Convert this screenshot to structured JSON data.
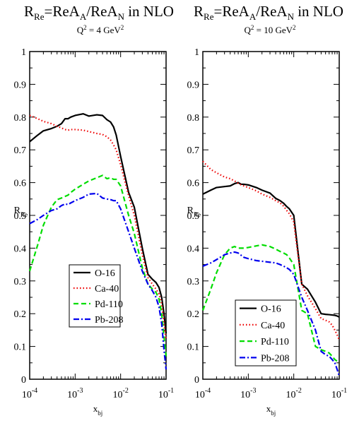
{
  "chart_data": [
    {
      "type": "line",
      "title": {
        "base": "R",
        "base_sub": "Re",
        "mid": "=ReA",
        "mid_sub": "A",
        "div": "/ReA",
        "div_sub": "N",
        "suffix": " in NLO"
      },
      "subtitle": {
        "base": "Q",
        "sup": "2",
        "rest": " = 4 GeV",
        "rest_sup": "2"
      },
      "ylabel": {
        "base": "R",
        "sub": "Re"
      },
      "xlabel": {
        "base": "x",
        "sub": "bj"
      },
      "xscale": "log",
      "xlim": [
        0.0001,
        0.1
      ],
      "ylim": [
        0,
        1
      ],
      "yticks": [
        "0",
        "0.1",
        "0.2",
        "0.3",
        "0.4",
        "0.5",
        "0.6",
        "0.7",
        "0.8",
        "0.9",
        "1"
      ],
      "xticks": [
        {
          "base": "10",
          "exp": "-4"
        },
        {
          "base": "10",
          "exp": "-3"
        },
        {
          "base": "10",
          "exp": "-2"
        },
        {
          "base": "10",
          "exp": "-1"
        }
      ],
      "legend_position": "bottom-left",
      "series": [
        {
          "name": "O-16",
          "color": "#000000",
          "dash": "solid",
          "x": [
            0.0001,
            0.00015,
            0.0002,
            0.0003,
            0.0004,
            0.0005,
            0.0006,
            0.0007,
            0.0008,
            0.001,
            0.0015,
            0.002,
            0.003,
            0.004,
            0.005,
            0.006,
            0.007,
            0.008,
            0.01,
            0.015,
            0.02,
            0.03,
            0.04,
            0.05,
            0.06,
            0.07,
            0.08,
            0.09,
            0.1
          ],
          "y": [
            0.725,
            0.745,
            0.758,
            0.765,
            0.772,
            0.78,
            0.795,
            0.795,
            0.8,
            0.805,
            0.81,
            0.803,
            0.807,
            0.805,
            0.792,
            0.785,
            0.77,
            0.745,
            0.68,
            0.57,
            0.525,
            0.4,
            0.32,
            0.305,
            0.295,
            0.28,
            0.25,
            0.2,
            0.14
          ]
        },
        {
          "name": "Ca-40",
          "color": "#ee0000",
          "dash": "dotted",
          "x": [
            0.0001,
            0.00015,
            0.0002,
            0.0003,
            0.0004,
            0.0005,
            0.0006,
            0.0007,
            0.0008,
            0.001,
            0.0015,
            0.002,
            0.003,
            0.004,
            0.005,
            0.006,
            0.007,
            0.008,
            0.01,
            0.015,
            0.02,
            0.03,
            0.04,
            0.05,
            0.06,
            0.07,
            0.08,
            0.09,
            0.1
          ],
          "y": [
            0.805,
            0.795,
            0.787,
            0.78,
            0.772,
            0.767,
            0.762,
            0.76,
            0.762,
            0.762,
            0.76,
            0.756,
            0.75,
            0.747,
            0.74,
            0.73,
            0.715,
            0.7,
            0.655,
            0.56,
            0.5,
            0.38,
            0.31,
            0.29,
            0.275,
            0.26,
            0.23,
            0.17,
            0.12
          ]
        },
        {
          "name": "Pd-110",
          "color": "#00dd00",
          "dash": "dashed",
          "x": [
            0.0001,
            0.00015,
            0.0002,
            0.0003,
            0.0004,
            0.0005,
            0.0006,
            0.0007,
            0.0008,
            0.001,
            0.0015,
            0.002,
            0.003,
            0.004,
            0.005,
            0.006,
            0.007,
            0.008,
            0.01,
            0.015,
            0.02,
            0.03,
            0.04,
            0.05,
            0.06,
            0.07,
            0.08,
            0.09,
            0.1
          ],
          "y": [
            0.33,
            0.41,
            0.47,
            0.525,
            0.548,
            0.553,
            0.558,
            0.562,
            0.57,
            0.58,
            0.595,
            0.605,
            0.615,
            0.622,
            0.612,
            0.615,
            0.61,
            0.61,
            0.59,
            0.5,
            0.445,
            0.34,
            0.29,
            0.275,
            0.265,
            0.245,
            0.2,
            0.13,
            0.07
          ]
        },
        {
          "name": "Pb-208",
          "color": "#0000ee",
          "dash": "dashdot",
          "x": [
            0.0001,
            0.00015,
            0.0002,
            0.0003,
            0.0004,
            0.0005,
            0.0006,
            0.0007,
            0.0008,
            0.001,
            0.0015,
            0.002,
            0.003,
            0.004,
            0.005,
            0.006,
            0.007,
            0.008,
            0.01,
            0.015,
            0.02,
            0.03,
            0.04,
            0.05,
            0.06,
            0.07,
            0.08,
            0.09,
            0.1
          ],
          "y": [
            0.475,
            0.488,
            0.5,
            0.515,
            0.52,
            0.53,
            0.535,
            0.533,
            0.538,
            0.545,
            0.555,
            0.565,
            0.567,
            0.553,
            0.55,
            0.548,
            0.545,
            0.545,
            0.52,
            0.45,
            0.4,
            0.33,
            0.29,
            0.27,
            0.25,
            0.22,
            0.17,
            0.09,
            0.03
          ]
        }
      ]
    },
    {
      "type": "line",
      "title": {
        "base": "R",
        "base_sub": "Re",
        "mid": "=ReA",
        "mid_sub": "A",
        "div": "/ReA",
        "div_sub": "N",
        "suffix": " in NLO"
      },
      "subtitle": {
        "base": "Q",
        "sup": "2",
        "rest": " = 10 GeV",
        "rest_sup": "2"
      },
      "ylabel": {
        "base": "R",
        "sub": "Re"
      },
      "xlabel": {
        "base": "x",
        "sub": "bj"
      },
      "xscale": "log",
      "xlim": [
        0.0001,
        0.1
      ],
      "ylim": [
        0,
        1
      ],
      "yticks": [
        "0",
        "0.1",
        "0.2",
        "0.3",
        "0.4",
        "0.5",
        "0.6",
        "0.7",
        "0.8",
        "0.9",
        "1"
      ],
      "xticks": [
        {
          "base": "10",
          "exp": "-4"
        },
        {
          "base": "10",
          "exp": "-3"
        },
        {
          "base": "10",
          "exp": "-2"
        },
        {
          "base": "10",
          "exp": "-1"
        }
      ],
      "legend_position": "bottom-center",
      "series": [
        {
          "name": "O-16",
          "color": "#000000",
          "dash": "solid",
          "x": [
            0.0001,
            0.00015,
            0.0002,
            0.0003,
            0.0004,
            0.0005,
            0.0006,
            0.0007,
            0.0008,
            0.001,
            0.0015,
            0.002,
            0.003,
            0.004,
            0.005,
            0.006,
            0.007,
            0.008,
            0.01,
            0.015,
            0.02,
            0.03,
            0.04,
            0.05,
            0.06,
            0.07,
            0.08,
            0.09,
            0.1
          ],
          "y": [
            0.565,
            0.577,
            0.585,
            0.588,
            0.59,
            0.597,
            0.6,
            0.595,
            0.595,
            0.593,
            0.585,
            0.577,
            0.568,
            0.552,
            0.545,
            0.537,
            0.527,
            0.52,
            0.5,
            0.29,
            0.275,
            0.235,
            0.2,
            0.198,
            0.197,
            0.196,
            0.195,
            0.193,
            0.19
          ]
        },
        {
          "name": "Ca-40",
          "color": "#ee0000",
          "dash": "dotted",
          "x": [
            0.0001,
            0.00015,
            0.0002,
            0.0003,
            0.0004,
            0.0005,
            0.0006,
            0.0007,
            0.0008,
            0.001,
            0.0015,
            0.002,
            0.003,
            0.004,
            0.005,
            0.006,
            0.007,
            0.008,
            0.01,
            0.015,
            0.02,
            0.03,
            0.04,
            0.05,
            0.06,
            0.07,
            0.08,
            0.09,
            0.1
          ],
          "y": [
            0.665,
            0.64,
            0.63,
            0.617,
            0.612,
            0.605,
            0.598,
            0.593,
            0.59,
            0.585,
            0.575,
            0.565,
            0.555,
            0.545,
            0.538,
            0.528,
            0.515,
            0.505,
            0.48,
            0.29,
            0.255,
            0.215,
            0.185,
            0.18,
            0.175,
            0.165,
            0.15,
            0.135,
            0.12
          ]
        },
        {
          "name": "Pd-110",
          "color": "#00dd00",
          "dash": "dashed",
          "x": [
            0.0001,
            0.00015,
            0.0002,
            0.0003,
            0.0004,
            0.0005,
            0.0006,
            0.0007,
            0.0008,
            0.001,
            0.0015,
            0.002,
            0.003,
            0.004,
            0.005,
            0.006,
            0.007,
            0.008,
            0.01,
            0.015,
            0.02,
            0.03,
            0.04,
            0.05,
            0.06,
            0.07,
            0.08,
            0.09,
            0.1
          ],
          "y": [
            0.21,
            0.275,
            0.325,
            0.38,
            0.4,
            0.405,
            0.4,
            0.4,
            0.4,
            0.402,
            0.407,
            0.41,
            0.405,
            0.397,
            0.39,
            0.385,
            0.38,
            0.37,
            0.35,
            0.21,
            0.2,
            0.1,
            0.09,
            0.085,
            0.08,
            0.07,
            0.06,
            0.055,
            0.05
          ]
        },
        {
          "name": "Pb-208",
          "color": "#0000ee",
          "dash": "dashdot",
          "x": [
            0.0001,
            0.00015,
            0.0002,
            0.0003,
            0.0004,
            0.0005,
            0.0006,
            0.0007,
            0.0008,
            0.001,
            0.0015,
            0.002,
            0.003,
            0.004,
            0.005,
            0.006,
            0.007,
            0.008,
            0.01,
            0.015,
            0.02,
            0.03,
            0.04,
            0.05,
            0.06,
            0.07,
            0.08,
            0.09,
            0.1
          ],
          "y": [
            0.345,
            0.355,
            0.365,
            0.38,
            0.385,
            0.388,
            0.385,
            0.378,
            0.372,
            0.368,
            0.362,
            0.36,
            0.357,
            0.355,
            0.35,
            0.345,
            0.34,
            0.335,
            0.32,
            0.25,
            0.21,
            0.15,
            0.085,
            0.075,
            0.07,
            0.06,
            0.05,
            0.03,
            0.01
          ]
        }
      ]
    }
  ]
}
